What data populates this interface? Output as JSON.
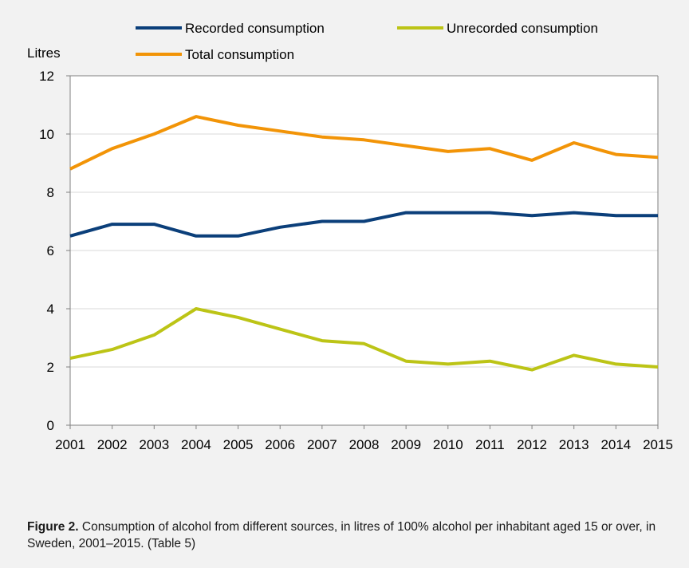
{
  "chart_data": {
    "type": "line",
    "ylabel": "Litres",
    "ylim": [
      0,
      12
    ],
    "yticks": [
      0,
      2,
      4,
      6,
      8,
      10,
      12
    ],
    "grid": true,
    "legend_position": "top",
    "x": [
      "2001",
      "2002",
      "2003",
      "2004",
      "2005",
      "2006",
      "2007",
      "2008",
      "2009",
      "2010",
      "2011",
      "2012",
      "2013",
      "2014",
      "2015"
    ],
    "series": [
      {
        "name": "Recorded consumption",
        "color": "#0b3f7a",
        "values": [
          6.5,
          6.9,
          6.9,
          6.5,
          6.5,
          6.8,
          7.0,
          7.0,
          7.3,
          7.3,
          7.3,
          7.2,
          7.3,
          7.2,
          7.2
        ]
      },
      {
        "name": "Unrecorded consumption",
        "color": "#bcc416",
        "values": [
          2.3,
          2.6,
          3.1,
          4.0,
          3.7,
          3.3,
          2.9,
          2.8,
          2.2,
          2.1,
          2.2,
          1.9,
          2.4,
          2.1,
          2.0
        ]
      },
      {
        "name": "Total consumption",
        "color": "#f29407",
        "values": [
          8.8,
          9.5,
          10.0,
          10.6,
          10.3,
          10.1,
          9.9,
          9.8,
          9.6,
          9.4,
          9.5,
          9.1,
          9.7,
          9.3,
          9.2
        ]
      }
    ]
  },
  "caption": {
    "label": "Figure 2.",
    "text": " Consumption of alcohol from different sources, in litres of 100% alcohol per inhabitant aged 15 or over, in Sweden, 2001–2015. (Table 5)"
  }
}
